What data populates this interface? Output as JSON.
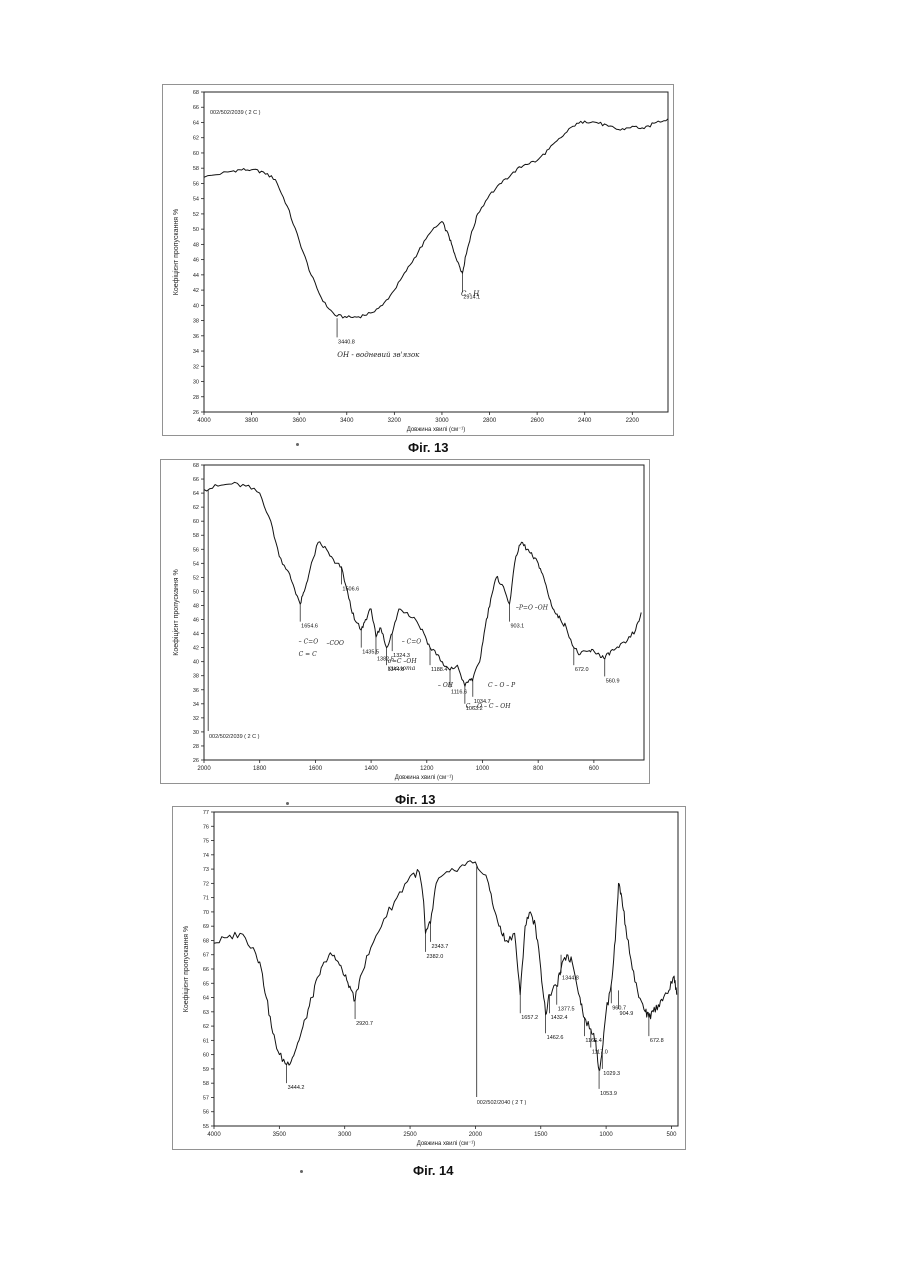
{
  "chart_data": [
    {
      "type": "line",
      "sample_id": "002/502/2039 ( 2 C )",
      "xlabel": "Довжина хвилі (см⁻¹)",
      "ylabel": "Коефіцієнт пропускання %",
      "xlim": [
        4000,
        2050
      ],
      "ylim": [
        26,
        68
      ],
      "xticks": [
        4000,
        3800,
        3600,
        3400,
        3200,
        3000,
        2800,
        2600,
        2400,
        2200
      ],
      "yticks": [
        26,
        28,
        30,
        32,
        34,
        36,
        38,
        40,
        42,
        44,
        46,
        48,
        50,
        52,
        54,
        56,
        58,
        60,
        62,
        64,
        66,
        68
      ],
      "x": [
        4000,
        3900,
        3850,
        3800,
        3750,
        3700,
        3650,
        3600,
        3550,
        3500,
        3450,
        3400,
        3350,
        3300,
        3250,
        3200,
        3150,
        3100,
        3050,
        3000,
        2970,
        2950,
        2930,
        2914,
        2900,
        2880,
        2850,
        2800,
        2750,
        2700,
        2650,
        2600,
        2550,
        2500,
        2450,
        2400,
        2350,
        2300,
        2250,
        2200,
        2150,
        2100,
        2050
      ],
      "y": [
        56.8,
        57.5,
        57.8,
        57.8,
        57.5,
        56.5,
        53,
        48.5,
        44,
        40.5,
        38.7,
        38.4,
        38.5,
        39,
        40,
        42,
        44.5,
        47,
        49.5,
        51,
        49,
        47,
        45.5,
        44.2,
        46.5,
        49,
        52,
        54.5,
        56,
        57.5,
        58.5,
        59,
        60.5,
        62,
        63.5,
        64.2,
        64,
        63.5,
        63,
        63.5,
        63.2,
        64,
        64.5
      ],
      "peaks": [
        {
          "x": 3440.8,
          "y": 38.3,
          "label": "3440.8"
        },
        {
          "x": 2914.1,
          "y": 44.2,
          "label": "2914.1"
        }
      ],
      "annotations": [
        {
          "x": 3440,
          "y": 33.2,
          "text": "ОН -  водневий зв'язок"
        },
        {
          "x": 2920,
          "y": 41.2,
          "text": "С - Н"
        }
      ],
      "caption": "Фіг. 13"
    },
    {
      "type": "line",
      "sample_id": "002/502/2039 ( 2 C )",
      "xlabel": "Довжина хвилі (см⁻¹)",
      "ylabel": "Коефіцієнт пропускання %",
      "xlim": [
        2000,
        420
      ],
      "ylim": [
        26,
        68
      ],
      "xticks": [
        2000,
        1800,
        1600,
        1400,
        1200,
        1000,
        800,
        600
      ],
      "yticks": [
        26,
        28,
        30,
        32,
        34,
        36,
        38,
        40,
        42,
        44,
        46,
        48,
        50,
        52,
        54,
        56,
        58,
        60,
        62,
        64,
        66,
        68
      ],
      "x": [
        2000,
        1950,
        1900,
        1850,
        1800,
        1760,
        1730,
        1700,
        1680,
        1654.6,
        1640,
        1620,
        1590,
        1560,
        1530,
        1506.6,
        1480,
        1460,
        1435.5,
        1420,
        1400,
        1382.5,
        1365,
        1344.8,
        1324.3,
        1300,
        1270,
        1240,
        1210,
        1188.4,
        1160,
        1140,
        1116.6,
        1090,
        1063.2,
        1045,
        1034.7,
        1010,
        990,
        970,
        950,
        930,
        903.1,
        880,
        860,
        840,
        820,
        800,
        780,
        760,
        740,
        720,
        700,
        672,
        650,
        620,
        600,
        580,
        560.9,
        540,
        510,
        480,
        450,
        430
      ],
      "y": [
        64.5,
        65,
        65.3,
        65,
        64,
        60,
        55,
        53,
        51,
        48.2,
        50,
        53,
        57,
        56,
        54,
        53.5,
        49,
        46,
        44.5,
        46,
        47.5,
        43.5,
        44.8,
        42,
        44,
        47.5,
        47,
        46,
        44,
        42,
        41,
        39.5,
        38.8,
        39.5,
        36.5,
        37.5,
        37.5,
        40,
        45,
        49,
        52,
        51,
        48.2,
        55,
        57,
        56,
        55,
        54,
        52,
        49,
        47,
        46,
        45,
        42,
        41,
        41.5,
        41.5,
        41,
        40.4,
        41.5,
        42,
        43,
        44.5,
        47
      ],
      "peaks": [
        {
          "x": 1654.6,
          "y": 48.2,
          "label": "1654.6"
        },
        {
          "x": 1506.6,
          "y": 53.5,
          "label": "1506.6"
        },
        {
          "x": 1435.5,
          "y": 44.5,
          "label": "1435.5"
        },
        {
          "x": 1382.5,
          "y": 43.5,
          "label": "1382.5"
        },
        {
          "x": 1344.8,
          "y": 42,
          "label": "1344.8"
        },
        {
          "x": 1324.3,
          "y": 44,
          "label": "1324.3"
        },
        {
          "x": 1188.4,
          "y": 42,
          "label": "1188.4"
        },
        {
          "x": 1116.6,
          "y": 38.8,
          "label": "1116.6"
        },
        {
          "x": 1063.2,
          "y": 36.5,
          "label": "1063.2"
        },
        {
          "x": 1034.7,
          "y": 37.5,
          "label": "1034.7"
        },
        {
          "x": 903.1,
          "y": 48.2,
          "label": "903.1"
        },
        {
          "x": 672.0,
          "y": 42,
          "label": "672.0"
        },
        {
          "x": 560.9,
          "y": 40.4,
          "label": "560.9"
        }
      ],
      "annotations": [
        {
          "x": 1660,
          "y": 42.6,
          "text": "– С=О"
        },
        {
          "x": 1560,
          "y": 42.4,
          "text": "–СОО"
        },
        {
          "x": 1660,
          "y": 40.8,
          "text": "С = С"
        },
        {
          "x": 1340,
          "y": 39.8,
          "text": "σ=С –ОН"
        },
        {
          "x": 1340,
          "y": 38.8,
          "text": "кислота"
        },
        {
          "x": 1290,
          "y": 42.6,
          "text": "– С=О"
        },
        {
          "x": 1160,
          "y": 36.4,
          "text": "– ОН"
        },
        {
          "x": 980,
          "y": 36.4,
          "text": "С – О – Р"
        },
        {
          "x": 1060,
          "y": 33.4,
          "text": "С – О – С – ОН"
        },
        {
          "x": 880,
          "y": 47.4,
          "text": "–Р=О –ОН"
        }
      ],
      "caption": "Фіг. 13"
    },
    {
      "type": "line",
      "sample_id": "002/502/2040 ( 2 T )",
      "xlabel": "Довжина хвилі (см⁻¹)",
      "ylabel": "Коефіцієнт пропускання %",
      "xlim": [
        4000,
        450
      ],
      "ylim": [
        55,
        77
      ],
      "xticks": [
        4000,
        3500,
        3000,
        2500,
        2000,
        1500,
        1000,
        500
      ],
      "yticks": [
        55,
        56,
        57,
        58,
        59,
        60,
        61,
        62,
        63,
        64,
        65,
        66,
        67,
        68,
        69,
        70,
        71,
        72,
        73,
        74,
        75,
        76,
        77
      ],
      "x": [
        4000,
        3900,
        3800,
        3700,
        3650,
        3600,
        3550,
        3500,
        3444.2,
        3400,
        3350,
        3300,
        3250,
        3200,
        3150,
        3100,
        3050,
        3000,
        2960,
        2920.7,
        2880,
        2800,
        2700,
        2600,
        2500,
        2430,
        2400,
        2382.0,
        2343.7,
        2300,
        2200,
        2100,
        2000,
        1900,
        1850,
        1800,
        1760,
        1700,
        1657.2,
        1620,
        1580,
        1540,
        1500,
        1462.6,
        1432.4,
        1377.5,
        1344.8,
        1300,
        1260,
        1200,
        1166.4,
        1117.0,
        1080,
        1053.9,
        1029.3,
        1000,
        960.7,
        930,
        904.9,
        880,
        850,
        800,
        750,
        700,
        672.8,
        640,
        600,
        560,
        520,
        480,
        460
      ],
      "y": [
        67.8,
        68.2,
        68.5,
        67.5,
        66.5,
        64,
        61.5,
        60,
        59.3,
        59.8,
        61,
        62.5,
        64,
        65.5,
        66.5,
        67,
        66.5,
        65.5,
        64.8,
        63.8,
        65.5,
        67.5,
        69.5,
        71,
        72.5,
        72.8,
        71,
        68.5,
        69.2,
        72,
        72.8,
        73.3,
        73.5,
        72,
        70,
        68.5,
        68,
        68.5,
        64.2,
        69,
        70,
        69,
        66,
        62.8,
        64.2,
        64.8,
        66,
        67,
        66.5,
        64,
        62.6,
        61.8,
        61,
        58.9,
        60.3,
        63,
        64.9,
        68,
        72,
        71,
        69,
        66,
        64,
        63,
        62.6,
        63,
        63.5,
        64,
        64.5,
        65.5,
        64.2
      ],
      "peaks": [
        {
          "x": 3444.2,
          "y": 59.3,
          "label": "3444.2"
        },
        {
          "x": 2920.7,
          "y": 63.8,
          "label": "2920.7"
        },
        {
          "x": 2382.0,
          "y": 68.5,
          "label": "2382.0"
        },
        {
          "x": 2343.7,
          "y": 69.2,
          "label": "2343.7"
        },
        {
          "x": 1657.2,
          "y": 64.2,
          "label": "1657.2"
        },
        {
          "x": 1462.6,
          "y": 62.8,
          "label": "1462.6"
        },
        {
          "x": 1432.4,
          "y": 64.2,
          "label": "1432.4"
        },
        {
          "x": 1377.5,
          "y": 64.8,
          "label": "1377.5"
        },
        {
          "x": 1344.8,
          "y": 67.0,
          "label": "1344.8"
        },
        {
          "x": 1166.4,
          "y": 62.6,
          "label": "1166.4"
        },
        {
          "x": 1117.0,
          "y": 61.8,
          "label": "1117.0"
        },
        {
          "x": 1053.9,
          "y": 58.9,
          "label": "1053.9"
        },
        {
          "x": 1029.3,
          "y": 60.3,
          "label": "1029.3"
        },
        {
          "x": 960.7,
          "y": 64.9,
          "label": "960.7"
        },
        {
          "x": 904.9,
          "y": 64.5,
          "label": "904.9"
        },
        {
          "x": 672.8,
          "y": 62.6,
          "label": "672.8"
        }
      ],
      "annotations": [],
      "caption": "Фіг. 14"
    }
  ]
}
